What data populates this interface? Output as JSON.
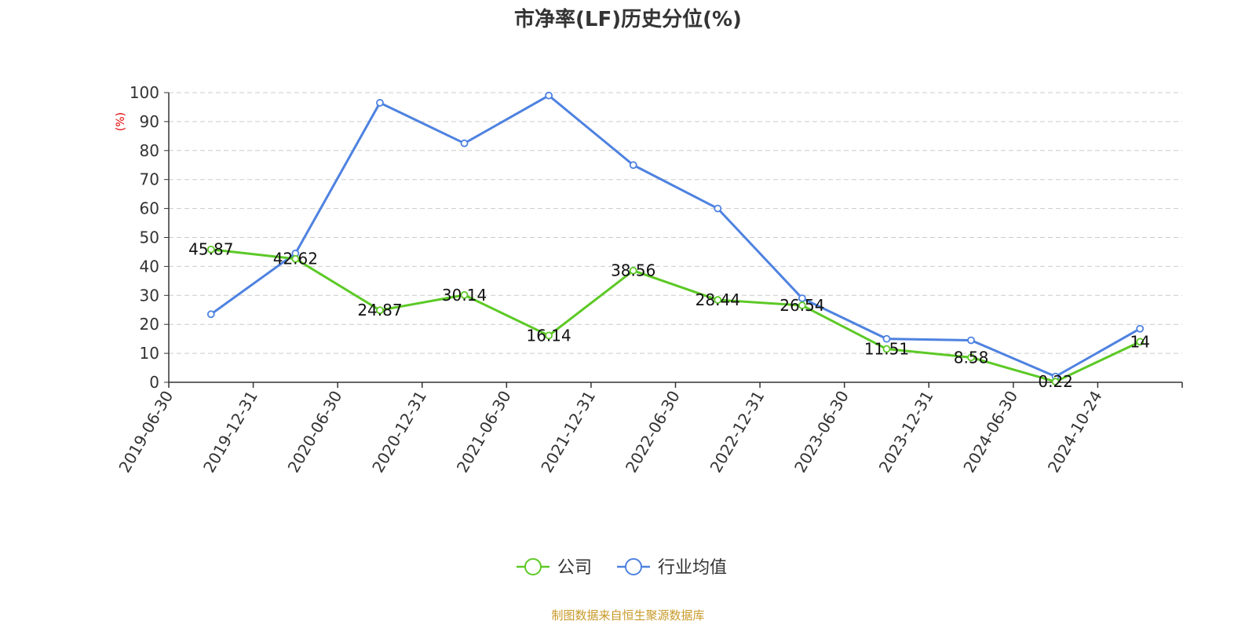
{
  "colors": {
    "company": "#5cc926",
    "industry": "#4e82e0",
    "ylabel": "#e00000",
    "source": "#c89a2a",
    "grid": "#cccccc",
    "axis": "#333333"
  },
  "chart_data": {
    "type": "line",
    "title": "市净率(LF)历史分位(%)",
    "ylabel": "(%)",
    "xlabel": "",
    "ylim": [
      0,
      100
    ],
    "yticks": [
      0,
      10,
      20,
      30,
      40,
      50,
      60,
      70,
      80,
      90,
      100
    ],
    "grid": true,
    "legend_position": "bottom-center",
    "categories": [
      "2019-06-30",
      "2019-12-31",
      "2020-06-30",
      "2020-12-31",
      "2021-06-30",
      "2021-12-31",
      "2022-06-30",
      "2022-12-31",
      "2023-06-30",
      "2023-12-31",
      "2024-06-30",
      "2024-10-24"
    ],
    "series": [
      {
        "name": "公司",
        "values": [
          45.87,
          42.62,
          24.87,
          30.14,
          16.14,
          38.56,
          28.44,
          26.54,
          11.51,
          8.58,
          0.22,
          14
        ],
        "labels": [
          "45.87",
          "42.62",
          "24.87",
          "30.14",
          "16.14",
          "38.56",
          "28.44",
          "26.54",
          "11.51",
          "8.58",
          "0.22",
          "14"
        ]
      },
      {
        "name": "行业均值",
        "values": [
          23.5,
          44.5,
          96.5,
          82.5,
          99,
          75,
          60,
          29,
          15,
          14.5,
          2,
          18.5
        ]
      }
    ],
    "source": "制图数据来自恒生聚源数据库"
  }
}
